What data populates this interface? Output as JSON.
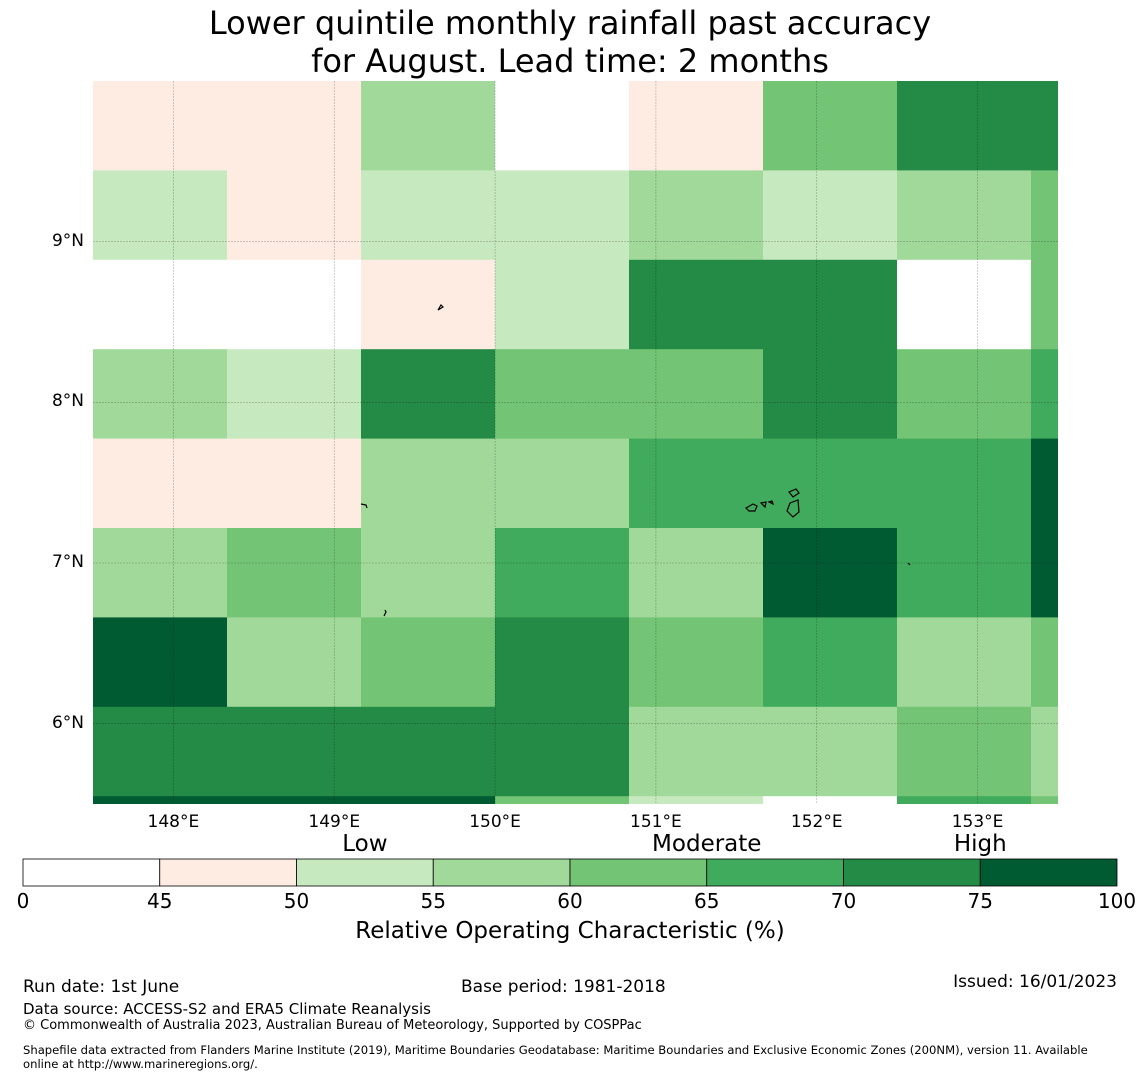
{
  "title_line1": "Lower quintile monthly rainfall past accuracy",
  "title_line2": "for August. Lead time: 2 months",
  "map": {
    "lon_range": [
      147.5,
      153.5
    ],
    "lat_range": [
      5.5,
      10.0
    ],
    "lat_labels": [
      {
        "text": "9°N",
        "lat": 9
      },
      {
        "text": "8°N",
        "lat": 8
      },
      {
        "text": "7°N",
        "lat": 7
      },
      {
        "text": "6°N",
        "lat": 6
      }
    ],
    "lon_labels": [
      {
        "text": "148°E",
        "lon": 148
      },
      {
        "text": "149°E",
        "lon": 149
      },
      {
        "text": "150°E",
        "lon": 150
      },
      {
        "text": "151°E",
        "lon": 151
      },
      {
        "text": "152°E",
        "lon": 152
      },
      {
        "text": "153°E",
        "lon": 153
      }
    ],
    "grid_values": [
      [
        47,
        47,
        57,
        40,
        47,
        62,
        72,
        72
      ],
      [
        52,
        47,
        52,
        52,
        57,
        52,
        57,
        62
      ],
      [
        40,
        40,
        47,
        52,
        72,
        72,
        40,
        62
      ],
      [
        57,
        52,
        72,
        62,
        62,
        72,
        62,
        67
      ],
      [
        47,
        47,
        57,
        57,
        67,
        67,
        67,
        77
      ],
      [
        57,
        62,
        57,
        67,
        57,
        77,
        67,
        77
      ],
      [
        77,
        57,
        62,
        72,
        62,
        67,
        57,
        62
      ],
      [
        72,
        72,
        72,
        72,
        57,
        57,
        62,
        57
      ],
      [
        77,
        77,
        77,
        62,
        52,
        40,
        67,
        62
      ]
    ]
  },
  "colorbar": {
    "bounds": [
      0,
      45,
      50,
      55,
      60,
      65,
      70,
      75,
      100
    ],
    "colors": [
      "#ffffff",
      "#feebe2",
      "#c7e9c0",
      "#a1d99b",
      "#74c476",
      "#41ab5d",
      "#238b45",
      "#005a32"
    ],
    "tick_labels": [
      "0",
      "45",
      "50",
      "55",
      "60",
      "65",
      "70",
      "75",
      "100"
    ],
    "category_labels": [
      "Low",
      "Moderate",
      "High"
    ],
    "label": "Relative Operating Characteristic (%)"
  },
  "footer": {
    "run_date": "Run date: 1st June",
    "base_period": "Base period: 1981-2018",
    "issued": "Issued: 16/01/2023",
    "data_source": "Data source: ACCESS-S2 and ERA5 Climate Reanalysis",
    "copyright": "© Commonwealth of Australia 2023, Australian Bureau of Meteorology, Supported by COSPPac",
    "shapefile_line1": "Shapefile data extracted from Flanders Marine Institute (2019), Maritime Boundaries Geodatabase: Maritime Boundaries and Exclusive Economic Zones (200NM), version 11. Available",
    "shapefile_line2": "online at http://www.marineregions.org/."
  }
}
